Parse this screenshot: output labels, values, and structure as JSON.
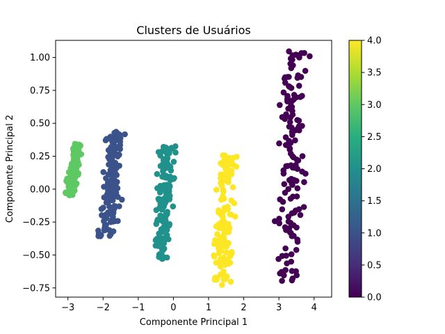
{
  "chart_data": {
    "type": "scatter",
    "title": "Clusters de Usuários",
    "xlabel": "Componente Principal 1",
    "ylabel": "Componente Principal 2",
    "xlim": [
      -3.35,
      4.5
    ],
    "ylim": [
      -0.82,
      1.13
    ],
    "xticks": [
      -3,
      -2,
      -1,
      0,
      1,
      2,
      3,
      4
    ],
    "xtick_labels": [
      "−3",
      "−2",
      "−1",
      "0",
      "1",
      "2",
      "3",
      "4"
    ],
    "yticks": [
      -0.75,
      -0.5,
      -0.25,
      0.0,
      0.25,
      0.5,
      0.75,
      1.0
    ],
    "ytick_labels": [
      "−0.75",
      "−0.50",
      "−0.25",
      "0.00",
      "0.25",
      "0.50",
      "0.75",
      "1.00"
    ],
    "grid": false,
    "colormap": "viridis",
    "colorbar": {
      "range": [
        0.0,
        4.0
      ],
      "ticks": [
        0.0,
        0.5,
        1.0,
        1.5,
        2.0,
        2.5,
        3.0,
        3.5,
        4.0
      ],
      "tick_labels": [
        "0.0",
        "0.5",
        "1.0",
        "1.5",
        "2.0",
        "2.5",
        "3.0",
        "3.5",
        "4.0"
      ]
    },
    "clusters": [
      {
        "label": 0,
        "color": "#440154",
        "center_x": 3.35,
        "spread_x": 0.32,
        "y_min": -0.7,
        "y_max": 1.05,
        "count": 150
      },
      {
        "label": 1,
        "color": "#3b528b",
        "center_x": -1.75,
        "spread_x": 0.22,
        "y_min": -0.36,
        "y_max": 0.44,
        "count": 150
      },
      {
        "label": 2,
        "color": "#21918c",
        "center_x": -0.25,
        "spread_x": 0.2,
        "y_min": -0.53,
        "y_max": 0.33,
        "count": 150
      },
      {
        "label": 3,
        "color": "#5ec962",
        "center_x": -2.85,
        "spread_x": 0.12,
        "y_min": -0.05,
        "y_max": 0.35,
        "count": 150
      },
      {
        "label": 4,
        "color": "#fde725",
        "center_x": 1.45,
        "spread_x": 0.22,
        "y_min": -0.73,
        "y_max": 0.26,
        "count": 150
      }
    ]
  }
}
